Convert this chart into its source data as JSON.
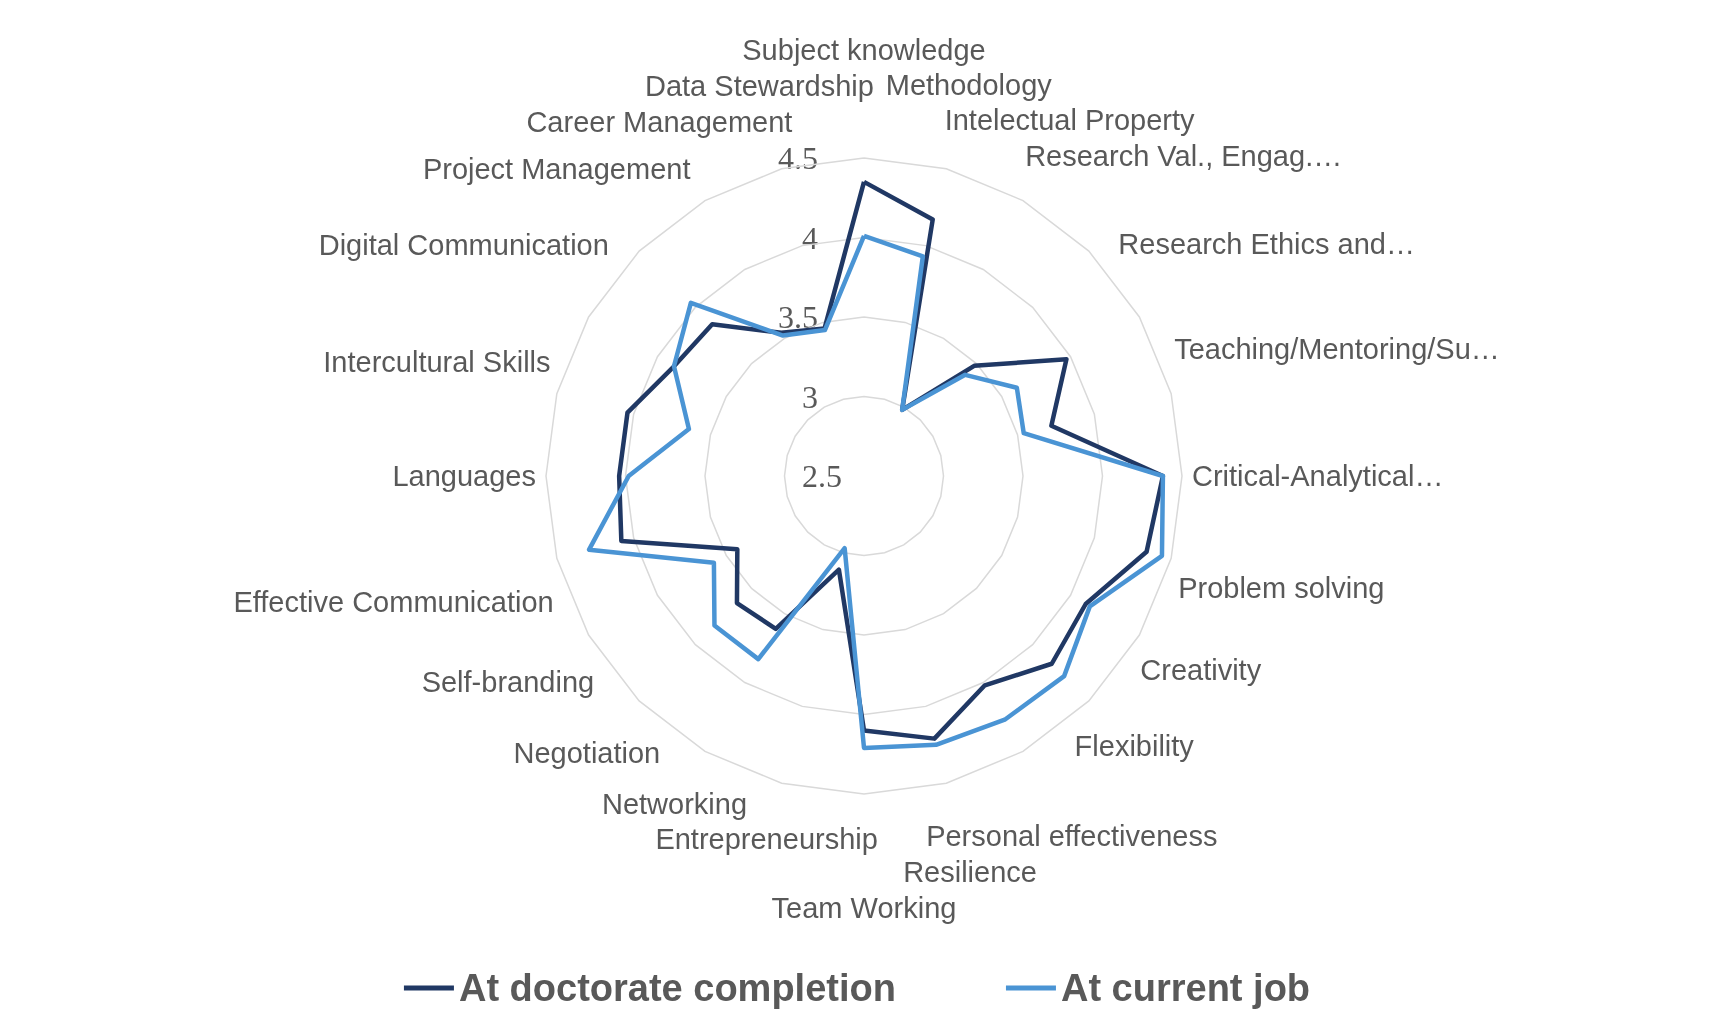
{
  "chart_data": {
    "type": "radar",
    "categories": [
      "Subject knowledge",
      "Methodology",
      "Intelectual Property",
      "Research Val., Engag.…",
      "Research Ethics and…",
      "Teaching/Mentoring/Su…",
      "Critical-Analytical…",
      "Problem solving",
      "Creativity",
      "Flexibility",
      "Personal effectiveness",
      "Resilience",
      "Team Working",
      "Entrepreneurship",
      "Networking",
      "Negotiation",
      "Self-branding",
      "Effective Communication",
      "Languages",
      "Intercultural Skills",
      "Digital Communication",
      "Project Management",
      "Career Management",
      "Data Stewardship"
    ],
    "series": [
      {
        "name": "At doctorate completion",
        "color": "#203864",
        "values": [
          4.35,
          4.17,
          2.98,
          3.48,
          3.97,
          3.72,
          4.38,
          4.34,
          4.11,
          4.17,
          4.02,
          4.21,
          4.1,
          3.11,
          3.61,
          3.63,
          3.42,
          4.08,
          4.04,
          4.04,
          3.88,
          3.85,
          3.54,
          3.46
        ]
      },
      {
        "name": "At current job",
        "color": "#4a94d4",
        "values": [
          4.01,
          3.93,
          2.98,
          3.4,
          3.61,
          3.54,
          4.38,
          4.44,
          4.14,
          4.28,
          4.27,
          4.25,
          4.21,
          2.97,
          3.83,
          3.83,
          3.59,
          4.29,
          3.98,
          3.64,
          3.88,
          4.04,
          3.52,
          3.45
        ]
      }
    ],
    "ylim": [
      2.5,
      4.5
    ],
    "yticks": [
      2.5,
      3,
      3.5,
      4,
      4.5
    ],
    "grid": true,
    "legend": "bottom",
    "marker": "none"
  }
}
